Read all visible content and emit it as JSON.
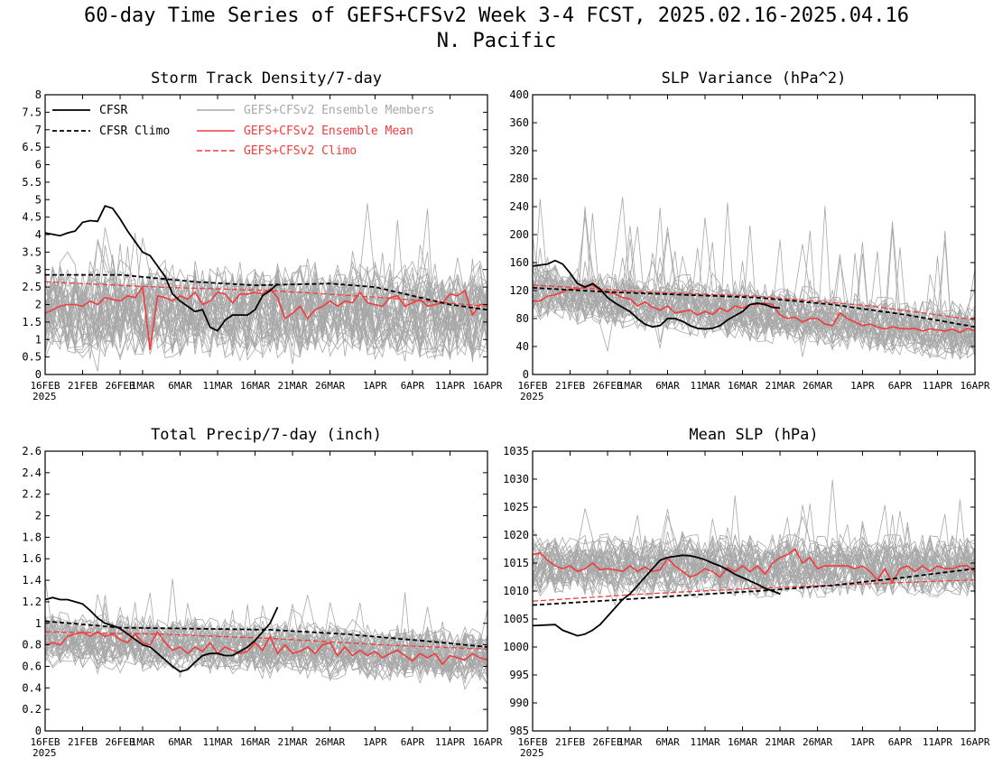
{
  "title": {
    "line1": "60-day Time Series of GEFS+CFSv2 Week 3-4 FCST, 2025.02.16-2025.04.16",
    "line2": "N. Pacific"
  },
  "colors": {
    "cfsr": "#000000",
    "members": "#a8a8a8",
    "ens_mean": "#f03c3c",
    "gefs_climo": "#f03c3c",
    "cfsr_climo": "#000000"
  },
  "legend": {
    "cfsr": "CFSR",
    "cfsr_climo": "CFSR Climo",
    "members": "GEFS+CFSv2 Ensemble Members",
    "ens_mean": "GEFS+CFSv2 Ensemble Mean",
    "gefs_climo": "GEFS+CFSv2 Climo"
  },
  "x_axis": {
    "ticks": [
      {
        "day": 0,
        "label": "16FEB"
      },
      {
        "day": 5,
        "label": "21FEB"
      },
      {
        "day": 10,
        "label": "26FEB"
      },
      {
        "day": 13,
        "label": "1MAR"
      },
      {
        "day": 18,
        "label": "6MAR"
      },
      {
        "day": 23,
        "label": "11MAR"
      },
      {
        "day": 28,
        "label": "16MAR"
      },
      {
        "day": 33,
        "label": "21MAR"
      },
      {
        "day": 38,
        "label": "26MAR"
      },
      {
        "day": 44,
        "label": "1APR"
      },
      {
        "day": 49,
        "label": "6APR"
      },
      {
        "day": 54,
        "label": "11APR"
      },
      {
        "day": 59,
        "label": "16APR"
      }
    ],
    "year_label": "2025",
    "range": [
      0,
      59
    ]
  },
  "chart_data": [
    {
      "type": "line",
      "title": "Storm Track Density/7-day",
      "ylim": [
        0,
        8
      ],
      "yticks": [
        "0",
        "0.5",
        "1",
        "1.5",
        "2",
        "2.5",
        "3",
        "3.5",
        "4",
        "4.5",
        "5",
        "5.5",
        "6",
        "6.5",
        "7",
        "7.5",
        "8"
      ],
      "members": {
        "count": 40,
        "base": [
          1.9,
          1.8
        ],
        "spread": 1.05,
        "peak": 5.4,
        "floor": 0.05
      },
      "series": [
        {
          "name": "CFSR",
          "style": "cfsr",
          "x": [
            0,
            2,
            3,
            4,
            5,
            6,
            7,
            8,
            9,
            10,
            11,
            12,
            13,
            14,
            15,
            16,
            17,
            18,
            19,
            20,
            21,
            22,
            23,
            24,
            25,
            26,
            27,
            28,
            29,
            30,
            31
          ],
          "values": [
            4.05,
            3.97,
            4.05,
            4.1,
            4.35,
            4.4,
            4.38,
            4.82,
            4.75,
            4.45,
            4.1,
            3.8,
            3.5,
            3.4,
            3.1,
            2.8,
            2.3,
            2.1,
            1.95,
            1.8,
            1.85,
            1.35,
            1.25,
            1.55,
            1.7,
            1.7,
            1.7,
            1.85,
            2.25,
            2.4,
            2.6
          ]
        },
        {
          "name": "CFSR Climo",
          "style": "cfsr_climo",
          "x": [
            0,
            10,
            20,
            28,
            38,
            44,
            49,
            54,
            59
          ],
          "values": [
            2.85,
            2.85,
            2.65,
            2.55,
            2.6,
            2.5,
            2.25,
            2.0,
            1.85
          ]
        },
        {
          "name": "GEFS+CFSv2 Ensemble Mean",
          "style": "ens_mean",
          "x": [
            0,
            1,
            2,
            3,
            4,
            5,
            6,
            7,
            8,
            9,
            10,
            11,
            12,
            13,
            14,
            15,
            16,
            17,
            18,
            19,
            20,
            21,
            22,
            23,
            24,
            25,
            26,
            27,
            28,
            29,
            30,
            31,
            32,
            33,
            34,
            35,
            36,
            37,
            38,
            39,
            40,
            41,
            42,
            43,
            44,
            45,
            46,
            47,
            48,
            49,
            50,
            51,
            52,
            53,
            54,
            55,
            56,
            57,
            58,
            59
          ],
          "values": [
            1.75,
            1.85,
            1.95,
            2.0,
            2.0,
            1.95,
            2.1,
            2.0,
            2.2,
            2.15,
            2.1,
            2.25,
            2.2,
            2.5,
            0.7,
            2.25,
            2.2,
            2.1,
            2.25,
            2.15,
            2.35,
            2.0,
            2.1,
            2.35,
            2.3,
            2.05,
            2.3,
            2.3,
            2.35,
            2.3,
            2.45,
            2.2,
            1.6,
            1.75,
            1.95,
            1.6,
            1.85,
            1.95,
            2.1,
            1.95,
            2.1,
            2.05,
            2.35,
            2.05,
            2.0,
            1.95,
            2.2,
            2.25,
            1.95,
            2.05,
            2.15,
            1.95,
            2.0,
            2.05,
            2.3,
            2.25,
            2.4,
            1.7,
            2.0,
            2.0
          ]
        },
        {
          "name": "GEFS+CFSv2 Climo",
          "style": "gefs_climo",
          "x": [
            0,
            15,
            30,
            45,
            59
          ],
          "values": [
            2.65,
            2.5,
            2.4,
            2.2,
            1.95
          ]
        }
      ]
    },
    {
      "type": "line",
      "title": "SLP Variance (hPa^2)",
      "ylim": [
        0,
        400
      ],
      "yticks": [
        "0",
        "40",
        "80",
        "120",
        "160",
        "200",
        "240",
        "280",
        "320",
        "360",
        "400"
      ],
      "members": {
        "count": 40,
        "base": [
          120,
          62
        ],
        "spread": 32,
        "peak": 310,
        "floor": 22
      },
      "series": [
        {
          "name": "CFSR",
          "style": "cfsr",
          "x": [
            0,
            2,
            3,
            4,
            5,
            6,
            7,
            8,
            9,
            10,
            11,
            12,
            13,
            14,
            15,
            16,
            17,
            18,
            19,
            20,
            21,
            22,
            23,
            24,
            25,
            26,
            27,
            28,
            29,
            30,
            31,
            32,
            33
          ],
          "values": [
            155,
            158,
            163,
            158,
            145,
            130,
            125,
            130,
            122,
            110,
            102,
            96,
            90,
            80,
            72,
            68,
            70,
            80,
            80,
            76,
            70,
            66,
            65,
            66,
            70,
            78,
            84,
            90,
            100,
            102,
            100,
            96,
            95
          ]
        },
        {
          "name": "CFSR Climo",
          "style": "cfsr_climo",
          "x": [
            0,
            10,
            20,
            30,
            40,
            50,
            59
          ],
          "values": [
            124,
            118,
            114,
            110,
            100,
            85,
            68
          ]
        },
        {
          "name": "GEFS+CFSv2 Ensemble Mean",
          "style": "ens_mean",
          "x": [
            0,
            1,
            2,
            3,
            4,
            5,
            6,
            7,
            8,
            9,
            10,
            11,
            12,
            13,
            14,
            15,
            16,
            17,
            18,
            19,
            20,
            21,
            22,
            23,
            24,
            25,
            26,
            27,
            28,
            29,
            30,
            31,
            32,
            33,
            34,
            35,
            36,
            37,
            38,
            39,
            40,
            41,
            42,
            43,
            44,
            45,
            46,
            47,
            48,
            49,
            50,
            51,
            52,
            53,
            54,
            55,
            56,
            57,
            58,
            59
          ],
          "values": [
            105,
            105,
            112,
            114,
            118,
            122,
            122,
            125,
            128,
            120,
            118,
            115,
            110,
            108,
            98,
            104,
            96,
            92,
            98,
            88,
            90,
            92,
            85,
            90,
            86,
            95,
            90,
            98,
            95,
            100,
            100,
            102,
            100,
            85,
            80,
            82,
            75,
            80,
            80,
            72,
            70,
            88,
            80,
            75,
            70,
            72,
            68,
            65,
            68,
            66,
            65,
            66,
            62,
            65,
            64,
            62,
            65,
            60,
            66,
            62
          ]
        },
        {
          "name": "GEFS+CFSv2 Climo",
          "style": "gefs_climo",
          "x": [
            0,
            15,
            30,
            45,
            59
          ],
          "values": [
            128,
            118,
            112,
            98,
            78
          ]
        }
      ]
    },
    {
      "type": "line",
      "title": "Total Precip/7-day (inch)",
      "ylim": [
        0,
        2.6
      ],
      "yticks": [
        "0",
        "0.2",
        "0.4",
        "0.6",
        "0.8",
        "1",
        "1.2",
        "1.4",
        "1.6",
        "1.8",
        "2",
        "2.2",
        "2.4",
        "2.6"
      ],
      "members": {
        "count": 40,
        "base": [
          0.84,
          0.68
        ],
        "spread": 0.2,
        "peak": 1.42,
        "floor": 0.18
      },
      "series": [
        {
          "name": "CFSR",
          "style": "cfsr",
          "x": [
            0,
            1,
            2,
            3,
            4,
            5,
            6,
            7,
            8,
            9,
            10,
            11,
            12,
            13,
            14,
            15,
            16,
            17,
            18,
            19,
            20,
            21,
            22,
            23,
            24,
            25,
            26,
            27,
            28,
            29,
            30,
            31
          ],
          "values": [
            1.22,
            1.24,
            1.22,
            1.22,
            1.2,
            1.18,
            1.12,
            1.05,
            1.0,
            0.98,
            0.95,
            0.9,
            0.85,
            0.8,
            0.78,
            0.72,
            0.66,
            0.6,
            0.55,
            0.57,
            0.64,
            0.7,
            0.72,
            0.72,
            0.7,
            0.7,
            0.74,
            0.78,
            0.84,
            0.92,
            1.0,
            1.15
          ]
        },
        {
          "name": "CFSR Climo",
          "style": "cfsr_climo",
          "x": [
            0,
            10,
            20,
            30,
            40,
            50,
            59
          ],
          "values": [
            1.02,
            0.96,
            0.95,
            0.94,
            0.9,
            0.84,
            0.78
          ]
        },
        {
          "name": "GEFS+CFSv2 Ensemble Mean",
          "style": "ens_mean",
          "x": [
            0,
            1,
            2,
            3,
            4,
            5,
            6,
            7,
            8,
            9,
            10,
            11,
            12,
            13,
            14,
            15,
            16,
            17,
            18,
            19,
            20,
            21,
            22,
            23,
            24,
            25,
            26,
            27,
            28,
            29,
            30,
            31,
            32,
            33,
            34,
            35,
            36,
            37,
            38,
            39,
            40,
            41,
            42,
            43,
            44,
            45,
            46,
            47,
            48,
            49,
            50,
            51,
            52,
            53,
            54,
            55,
            56,
            57,
            58,
            59
          ],
          "values": [
            0.8,
            0.82,
            0.8,
            0.88,
            0.9,
            0.92,
            0.88,
            0.92,
            0.88,
            0.9,
            0.85,
            0.82,
            0.9,
            0.82,
            0.8,
            0.92,
            0.82,
            0.75,
            0.78,
            0.72,
            0.78,
            0.74,
            0.82,
            0.72,
            0.78,
            0.75,
            0.72,
            0.74,
            0.82,
            0.75,
            0.88,
            0.72,
            0.8,
            0.72,
            0.74,
            0.78,
            0.72,
            0.8,
            0.82,
            0.7,
            0.78,
            0.7,
            0.75,
            0.7,
            0.74,
            0.68,
            0.72,
            0.75,
            0.7,
            0.65,
            0.72,
            0.68,
            0.72,
            0.62,
            0.7,
            0.68,
            0.66,
            0.72,
            0.68,
            0.66
          ]
        },
        {
          "name": "GEFS+CFSv2 Climo",
          "style": "gefs_climo",
          "x": [
            0,
            15,
            30,
            45,
            59
          ],
          "values": [
            0.92,
            0.9,
            0.86,
            0.8,
            0.76
          ]
        }
      ]
    },
    {
      "type": "line",
      "title": "Mean SLP (hPa)",
      "ylim": [
        985,
        1035
      ],
      "yticks": [
        "985",
        "990",
        "995",
        "1000",
        "1005",
        "1010",
        "1015",
        "1020",
        "1025",
        "1030",
        "1035"
      ],
      "members": {
        "count": 40,
        "base": [
          1014.5,
          1014.5
        ],
        "spread": 4.2,
        "peak": 1031,
        "floor": 994
      },
      "series": [
        {
          "name": "CFSR",
          "style": "cfsr",
          "x": [
            0,
            3,
            4,
            5,
            6,
            7,
            8,
            9,
            10,
            11,
            12,
            13,
            14,
            15,
            16,
            17,
            18,
            19,
            20,
            21,
            22,
            23,
            24,
            25,
            26,
            27,
            28,
            29,
            30,
            31,
            32,
            33
          ],
          "values": [
            1003.8,
            1004,
            1003,
            1002.5,
            1002,
            1002.3,
            1003,
            1004,
            1005.5,
            1007,
            1008.5,
            1009.5,
            1011,
            1012.5,
            1014,
            1015.5,
            1016,
            1016.2,
            1016.4,
            1016.3,
            1016,
            1015.6,
            1015,
            1014.5,
            1013.8,
            1013,
            1012.4,
            1011.8,
            1011.2,
            1010.5,
            1010,
            1009.5
          ]
        },
        {
          "name": "CFSR Climo",
          "style": "cfsr_climo",
          "x": [
            0,
            10,
            20,
            30,
            40,
            50,
            59
          ],
          "values": [
            1007.5,
            1008.3,
            1009.2,
            1010,
            1011,
            1012.5,
            1014
          ]
        },
        {
          "name": "GEFS+CFSv2 Ensemble Mean",
          "style": "ens_mean",
          "x": [
            0,
            1,
            2,
            3,
            4,
            5,
            6,
            7,
            8,
            9,
            10,
            11,
            12,
            13,
            14,
            15,
            16,
            17,
            18,
            19,
            20,
            21,
            22,
            23,
            24,
            25,
            26,
            27,
            28,
            29,
            30,
            31,
            32,
            33,
            34,
            35,
            36,
            37,
            38,
            39,
            40,
            41,
            42,
            43,
            44,
            45,
            46,
            47,
            48,
            49,
            50,
            51,
            52,
            53,
            54,
            55,
            56,
            57,
            58,
            59
          ],
          "values": [
            1016.5,
            1016.8,
            1015.5,
            1014.5,
            1014,
            1014.5,
            1013.5,
            1014,
            1015,
            1013.8,
            1014,
            1013.8,
            1013.5,
            1014.5,
            1013.5,
            1014.3,
            1013.5,
            1013.8,
            1015.8,
            1014.5,
            1013.5,
            1012.5,
            1013,
            1014,
            1013.5,
            1012.5,
            1014.2,
            1013.5,
            1014.5,
            1013.5,
            1014.5,
            1013,
            1015,
            1016,
            1016.5,
            1017.5,
            1015,
            1016,
            1014,
            1014.5,
            1014.5,
            1014.5,
            1014.5,
            1014,
            1014.5,
            1013.5,
            1012,
            1014,
            1011.5,
            1014,
            1014.5,
            1013.5,
            1014.5,
            1013.5,
            1014.5,
            1014,
            1014,
            1014.5,
            1014.5,
            1013.5
          ]
        },
        {
          "name": "GEFS+CFSv2 Climo",
          "style": "gefs_climo",
          "x": [
            0,
            15,
            30,
            45,
            59
          ],
          "values": [
            1008.2,
            1009.5,
            1010.5,
            1011.3,
            1012
          ]
        }
      ]
    }
  ]
}
